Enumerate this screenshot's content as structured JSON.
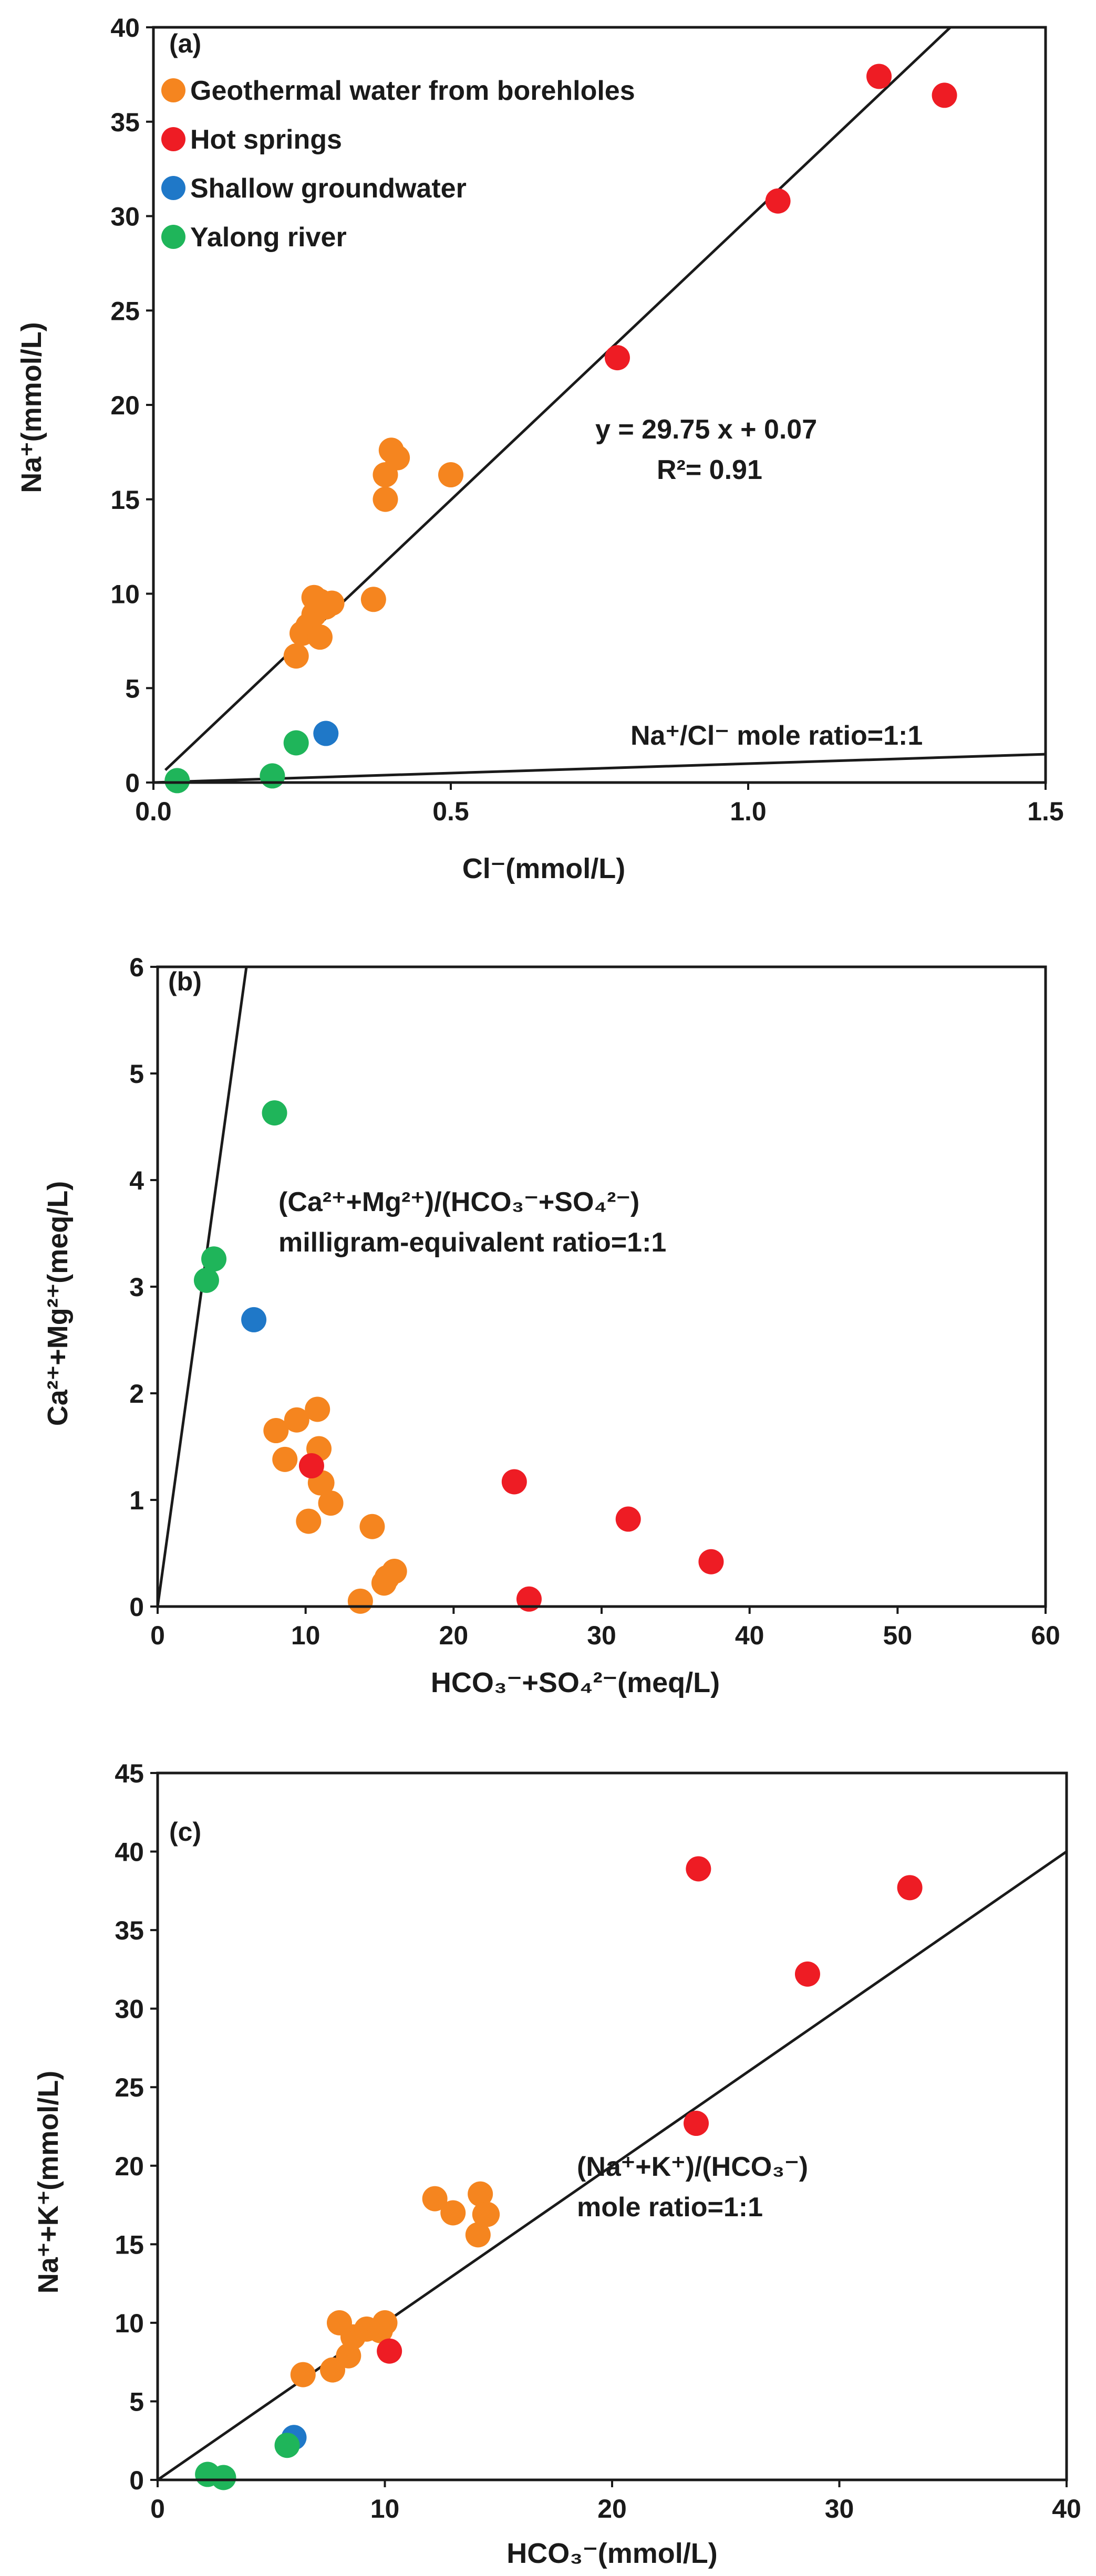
{
  "chart_data": [
    {
      "type": "scatter",
      "panel_label": "(a)",
      "xlabel": "Cl⁻(mmol/L)",
      "ylabel": "Na⁺(mmol/L)",
      "xlim": [
        0,
        1.5
      ],
      "ylim": [
        0,
        40
      ],
      "x_ticks": [
        "0.0",
        "0.5",
        "1.0",
        "1.5"
      ],
      "y_ticks": [
        "0",
        "5",
        "10",
        "15",
        "20",
        "25",
        "30",
        "35",
        "40"
      ],
      "grid": false,
      "legend": {
        "position": "top-left",
        "items": [
          {
            "name": "Geothermal water from borehloles",
            "color": "#f5851f"
          },
          {
            "name": "Hot springs",
            "color": "#ee1c24"
          },
          {
            "name": "Shallow groundwater",
            "color": "#1f78c8"
          },
          {
            "name": "Yalong river",
            "color": "#1fb55a"
          }
        ]
      },
      "series": [
        {
          "name": "Geothermal water from borehloles",
          "color": "#f5851f",
          "x": [
            0.24,
            0.25,
            0.26,
            0.27,
            0.28,
            0.29,
            0.3,
            0.27,
            0.28,
            0.37,
            0.39,
            0.39,
            0.4,
            0.41,
            0.5
          ],
          "y": [
            6.7,
            7.9,
            8.3,
            8.9,
            7.7,
            9.3,
            9.5,
            9.8,
            9.6,
            9.7,
            15.0,
            16.3,
            17.6,
            17.2,
            16.3
          ]
        },
        {
          "name": "Hot springs",
          "color": "#ee1c24",
          "x": [
            0.78,
            1.05,
            1.22,
            1.33
          ],
          "y": [
            22.5,
            30.8,
            37.4,
            36.4
          ]
        },
        {
          "name": "Shallow groundwater",
          "color": "#1f78c8",
          "x": [
            0.29
          ],
          "y": [
            2.6
          ]
        },
        {
          "name": "Yalong river",
          "color": "#1fb55a",
          "x": [
            0.04,
            0.2,
            0.24
          ],
          "y": [
            0.1,
            0.35,
            2.1
          ]
        }
      ],
      "lines": [
        {
          "name": "fit",
          "x": [
            0.02,
            1.34
          ],
          "y": [
            0.66,
            40.0
          ]
        },
        {
          "name": "ratio",
          "x": [
            0.0,
            1.5
          ],
          "y": [
            0.0,
            1.5
          ]
        }
      ],
      "annotations": [
        {
          "name": "equation",
          "text": "y = 29.75 x + 0.07"
        },
        {
          "name": "r2",
          "text": "R²= 0.91"
        },
        {
          "name": "ratio-line",
          "text": "Na⁺/Cl⁻ mole ratio=1:1"
        }
      ]
    },
    {
      "type": "scatter",
      "panel_label": "(b)",
      "xlabel": "HCO₃⁻+SO₄²⁻(meq/L)",
      "ylabel": "Ca²⁺+Mg²⁺(meq/L)",
      "xlim": [
        0,
        60
      ],
      "ylim": [
        0,
        6
      ],
      "x_ticks": [
        "0",
        "10",
        "20",
        "30",
        "40",
        "50",
        "60"
      ],
      "y_ticks": [
        "0",
        "1",
        "2",
        "3",
        "4",
        "5",
        "6"
      ],
      "grid": false,
      "series": [
        {
          "name": "Geothermal water from borehloles",
          "color": "#f5851f",
          "x": [
            8.0,
            8.6,
            9.4,
            10.2,
            10.9,
            11.0,
            10.8,
            11.1,
            11.7,
            14.5,
            15.3,
            15.5,
            16.0,
            13.7
          ],
          "y": [
            1.65,
            1.38,
            1.75,
            0.8,
            1.48,
            1.16,
            1.85,
            1.16,
            0.97,
            0.75,
            0.22,
            0.27,
            0.33,
            0.05
          ]
        },
        {
          "name": "Hot springs",
          "color": "#ee1c24",
          "x": [
            10.4,
            24.1,
            25.1,
            31.8,
            37.4
          ],
          "y": [
            1.32,
            1.17,
            0.07,
            0.82,
            0.42
          ]
        },
        {
          "name": "Shallow groundwater",
          "color": "#1f78c8",
          "x": [
            6.5
          ],
          "y": [
            2.69
          ]
        },
        {
          "name": "Yalong river",
          "color": "#1fb55a",
          "x": [
            3.3,
            3.8,
            7.9
          ],
          "y": [
            3.06,
            3.26,
            4.63
          ]
        }
      ],
      "lines": [
        {
          "name": "ratio",
          "x": [
            0.0,
            6.0
          ],
          "y": [
            0.0,
            6.0
          ]
        }
      ],
      "annotations": [
        {
          "name": "ratio-line-1",
          "text": "(Ca²⁺+Mg²⁺)/(HCO₃⁻+SO₄²⁻)"
        },
        {
          "name": "ratio-line-2",
          "text": "milligram-equivalent ratio=1:1"
        }
      ]
    },
    {
      "type": "scatter",
      "panel_label": "(c)",
      "xlabel": "HCO₃⁻(mmol/L)",
      "ylabel": "Na⁺+K⁺(mmol/L)",
      "xlim": [
        0,
        40
      ],
      "ylim": [
        0,
        45
      ],
      "x_ticks": [
        "0",
        "10",
        "20",
        "30",
        "40"
      ],
      "y_ticks": [
        "0",
        "5",
        "10",
        "15",
        "20",
        "25",
        "30",
        "35",
        "40",
        "45"
      ],
      "grid": false,
      "series": [
        {
          "name": "Geothermal water from borehloles",
          "color": "#f5851f",
          "x": [
            6.4,
            7.7,
            8.0,
            8.4,
            8.6,
            9.2,
            9.8,
            10.0,
            12.2,
            13.0,
            14.1,
            14.2,
            14.4,
            14.5
          ],
          "y": [
            6.7,
            7.0,
            10.0,
            7.9,
            9.1,
            9.6,
            9.5,
            10.0,
            17.9,
            17.0,
            15.6,
            18.2,
            16.9,
            16.9
          ]
        },
        {
          "name": "Hot springs",
          "color": "#ee1c24",
          "x": [
            10.2,
            23.7,
            23.8,
            28.6,
            33.1
          ],
          "y": [
            8.2,
            22.7,
            38.9,
            32.2,
            37.7
          ]
        },
        {
          "name": "Shallow groundwater",
          "color": "#1f78c8",
          "x": [
            6.0
          ],
          "y": [
            2.7
          ]
        },
        {
          "name": "Yalong river",
          "color": "#1fb55a",
          "x": [
            2.2,
            2.9,
            5.7
          ],
          "y": [
            0.35,
            0.15,
            2.2
          ]
        }
      ],
      "lines": [
        {
          "name": "ratio",
          "x": [
            0.0,
            40.0
          ],
          "y": [
            0.0,
            40.0
          ]
        }
      ],
      "annotations": [
        {
          "name": "ratio-line-1",
          "text": "(Na⁺+K⁺)/(HCO₃⁻)"
        },
        {
          "name": "ratio-line-2",
          "text": "mole ratio=1:1"
        }
      ]
    }
  ]
}
